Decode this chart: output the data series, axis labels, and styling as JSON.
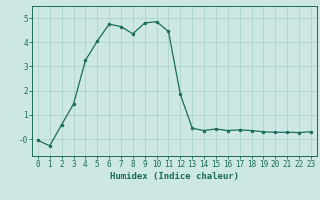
{
  "x": [
    0,
    1,
    2,
    3,
    4,
    5,
    6,
    7,
    8,
    9,
    10,
    11,
    12,
    13,
    14,
    15,
    16,
    17,
    18,
    19,
    20,
    21,
    22,
    23
  ],
  "y": [
    -0.05,
    -0.28,
    0.6,
    1.45,
    3.25,
    4.05,
    4.75,
    4.65,
    4.35,
    4.8,
    4.85,
    4.45,
    1.85,
    0.45,
    0.35,
    0.42,
    0.35,
    0.38,
    0.35,
    0.3,
    0.28,
    0.28,
    0.27,
    0.3
  ],
  "line_color": "#1a6b5a",
  "marker_size": 2.0,
  "line_width": 0.9,
  "bg_color": "#cde8e4",
  "grid_color": "#aacfca",
  "xlabel": "Humidex (Indice chaleur)",
  "xlim": [
    -0.5,
    23.5
  ],
  "ylim": [
    -0.7,
    5.5
  ],
  "xticks": [
    0,
    1,
    2,
    3,
    4,
    5,
    6,
    7,
    8,
    9,
    10,
    11,
    12,
    13,
    14,
    15,
    16,
    17,
    18,
    19,
    20,
    21,
    22,
    23
  ],
  "yticks": [
    0,
    1,
    2,
    3,
    4,
    5
  ],
  "ytick_labels": [
    "-0",
    "1",
    "2",
    "3",
    "4",
    "5"
  ],
  "tick_color": "#1a6b5a",
  "tick_fontsize": 5.5,
  "xlabel_fontsize": 6.5
}
